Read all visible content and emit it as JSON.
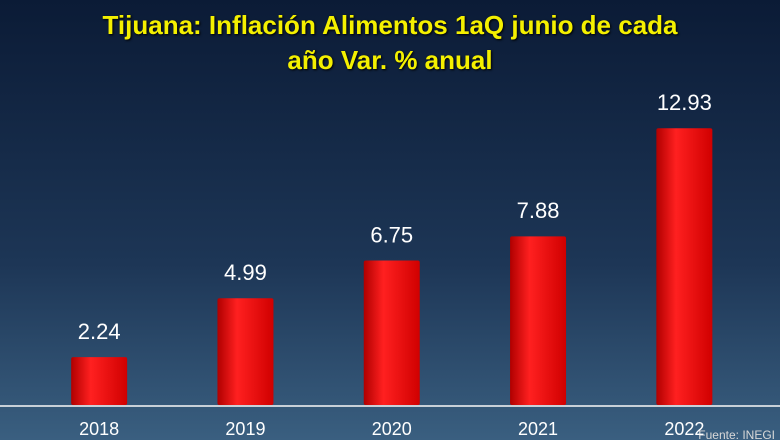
{
  "chart_data": {
    "type": "bar",
    "title": "Tijuana: Inflación Alimentos 1aQ junio de cada año Var. % anual",
    "categories": [
      "2018",
      "2019",
      "2020",
      "2021",
      "2022"
    ],
    "values": [
      2.24,
      4.99,
      6.75,
      7.88,
      12.93
    ],
    "color": "#ff1a1a",
    "source": "Fuente: INEGI"
  }
}
